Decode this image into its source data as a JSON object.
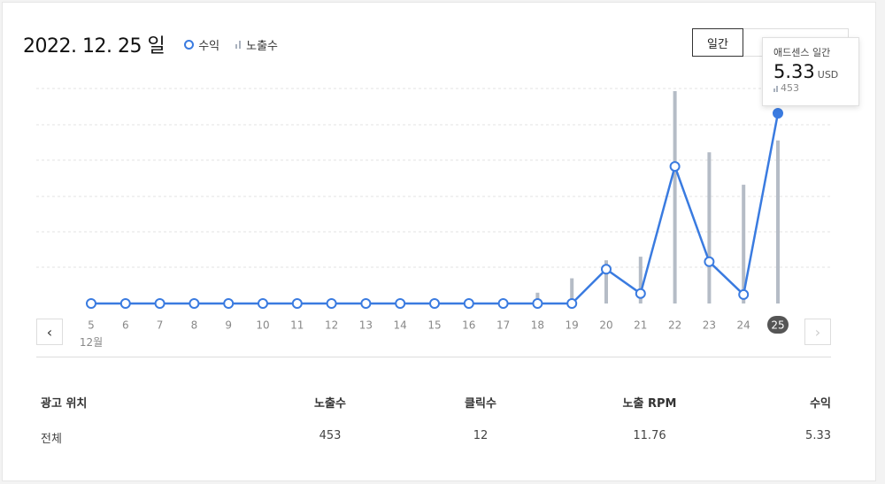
{
  "header": {
    "date": "2022. 12. 25 일",
    "legend_revenue": "수익",
    "legend_impressions": "노출수",
    "daily_button": "일간"
  },
  "tooltip": {
    "title": "애드센스 일간",
    "value": "5.33",
    "unit": "USD",
    "impressions": "453"
  },
  "colors": {
    "line": "#3a7be0",
    "bar": "#b5bcc6",
    "active_badge": "#555555"
  },
  "chart_data": {
    "type": "line",
    "x": [
      "5",
      "6",
      "7",
      "8",
      "9",
      "10",
      "11",
      "12",
      "13",
      "14",
      "15",
      "16",
      "17",
      "18",
      "19",
      "20",
      "21",
      "22",
      "23",
      "24",
      "25"
    ],
    "month_label": "12월",
    "series": [
      {
        "name": "수익",
        "kind": "line",
        "values": [
          0,
          0,
          0,
          0,
          0,
          0,
          0,
          0,
          0,
          0,
          0,
          0,
          0,
          0,
          0,
          0.96,
          0.28,
          3.84,
          1.17,
          0.25,
          5.33
        ]
      },
      {
        "name": "노출수",
        "kind": "bar",
        "values": [
          0,
          0,
          0,
          0,
          0,
          0,
          0,
          0,
          0,
          0,
          0,
          0,
          0,
          30,
          70,
          120,
          130,
          590,
          420,
          330,
          453
        ]
      }
    ],
    "active_index": 20,
    "revenue_max": 5.33,
    "impressions_max": 590,
    "grid": true
  },
  "nav": {
    "prev": "‹",
    "next": "›"
  },
  "table": {
    "headers": [
      "광고 위치",
      "노출수",
      "클릭수",
      "노출 RPM",
      "수익"
    ],
    "rows": [
      [
        "전체",
        "453",
        "12",
        "11.76",
        "5.33"
      ]
    ]
  }
}
